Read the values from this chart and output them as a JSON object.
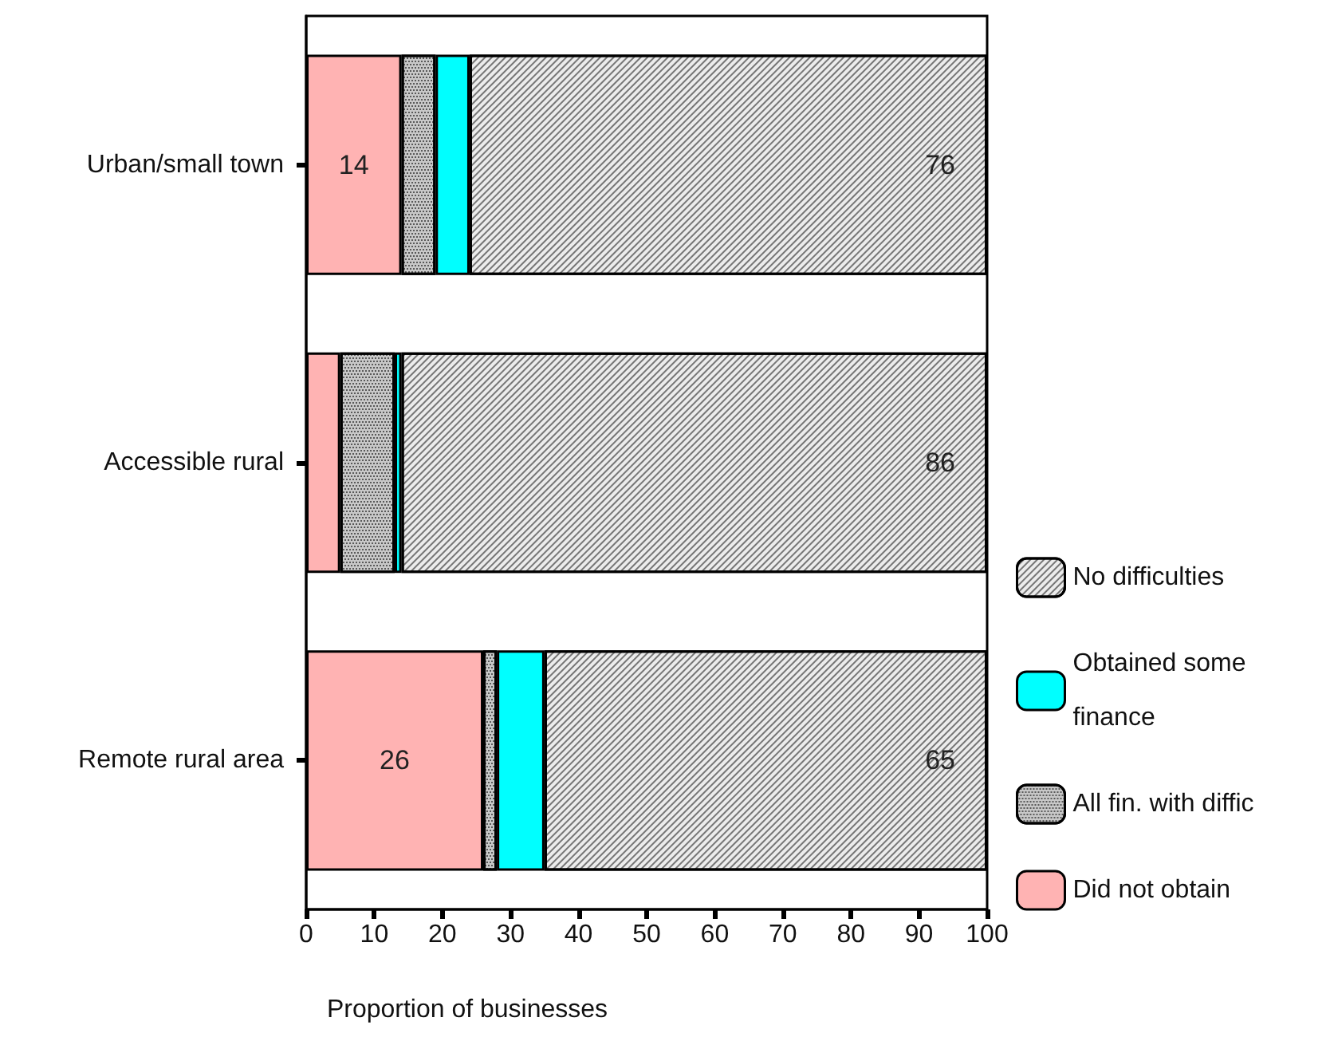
{
  "chart_data": {
    "type": "bar",
    "orientation": "horizontal",
    "stacked": true,
    "xlabel": "Proportion of businesses",
    "categories": [
      "Urban/small town",
      "Accessible rural",
      "Remote rural area"
    ],
    "series": [
      {
        "name": "Did not obtain",
        "color": "#ffb3b3",
        "values": [
          14,
          5,
          26
        ],
        "value_labels": [
          "14",
          null,
          "26"
        ]
      },
      {
        "name": "All fin. with diffic",
        "color": "#c8c8c8",
        "values": [
          5,
          8,
          2
        ]
      },
      {
        "name": "Obtained some finance",
        "color": "#00ffff",
        "values": [
          5,
          1,
          7
        ]
      },
      {
        "name": "No difficulties",
        "color": "#ececec",
        "values": [
          76,
          86,
          65
        ],
        "value_labels": [
          "76",
          "86",
          "65"
        ]
      }
    ],
    "xlim": [
      0,
      100
    ],
    "xticks": [
      0,
      10,
      20,
      30,
      40,
      50,
      60,
      70,
      80,
      90,
      100
    ],
    "grid": false,
    "legend": "right"
  }
}
